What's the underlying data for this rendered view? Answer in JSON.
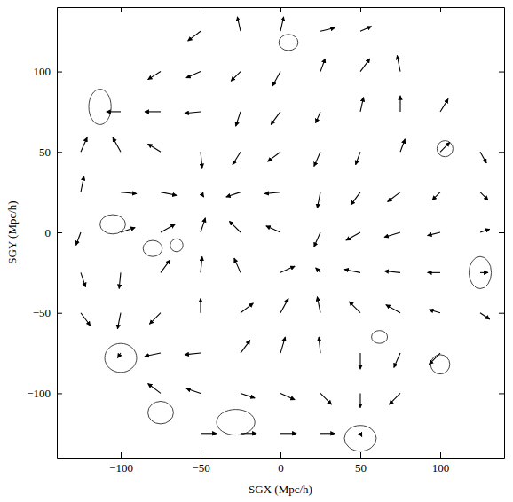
{
  "chart_data": {
    "type": "vector_field",
    "xlabel": "SGX (Mpc/h)",
    "ylabel": "SGY (Mpc/h)",
    "xlim": [
      -140,
      140
    ],
    "ylim": [
      -140,
      140
    ],
    "xticks": [
      {
        "value": -100,
        "label": "−100"
      },
      {
        "value": -50,
        "label": "−50"
      },
      0,
      50,
      100
    ],
    "yticks": [
      {
        "value": -100,
        "label": "−100"
      },
      {
        "value": -50,
        "label": "−50"
      },
      0,
      50,
      100
    ],
    "color": "#000000",
    "vectors": [
      {
        "x": -50,
        "y": 125,
        "dx": -8,
        "dy": -6
      },
      {
        "x": -25,
        "y": 125,
        "dx": -2,
        "dy": 9
      },
      {
        "x": 0,
        "y": 125,
        "dx": 2,
        "dy": 9
      },
      {
        "x": 25,
        "y": 125,
        "dx": 9,
        "dy": 2
      },
      {
        "x": 50,
        "y": 125,
        "dx": 7,
        "dy": 3
      },
      {
        "x": -75,
        "y": 100,
        "dx": -8,
        "dy": -5
      },
      {
        "x": -50,
        "y": 100,
        "dx": -9,
        "dy": -4
      },
      {
        "x": -25,
        "y": 100,
        "dx": -6,
        "dy": -6
      },
      {
        "x": 0,
        "y": 100,
        "dx": -5,
        "dy": -9
      },
      {
        "x": 25,
        "y": 100,
        "dx": 3,
        "dy": 8
      },
      {
        "x": 50,
        "y": 100,
        "dx": 6,
        "dy": 8
      },
      {
        "x": 75,
        "y": 100,
        "dx": -2,
        "dy": 10
      },
      {
        "x": -100,
        "y": 75,
        "dx": -9,
        "dy": 0
      },
      {
        "x": -75,
        "y": 75,
        "dx": -10,
        "dy": 0
      },
      {
        "x": -50,
        "y": 75,
        "dx": -10,
        "dy": -1
      },
      {
        "x": -25,
        "y": 75,
        "dx": -3,
        "dy": -9
      },
      {
        "x": 0,
        "y": 75,
        "dx": -6,
        "dy": -8
      },
      {
        "x": 25,
        "y": 75,
        "dx": -3,
        "dy": -7
      },
      {
        "x": 50,
        "y": 75,
        "dx": 2,
        "dy": 9
      },
      {
        "x": 75,
        "y": 75,
        "dx": 0,
        "dy": 10
      },
      {
        "x": 100,
        "y": 75,
        "dx": 5,
        "dy": 8
      },
      {
        "x": -125,
        "y": 50,
        "dx": 4,
        "dy": 9
      },
      {
        "x": -100,
        "y": 50,
        "dx": -5,
        "dy": 9
      },
      {
        "x": -75,
        "y": 50,
        "dx": -8,
        "dy": 5
      },
      {
        "x": -50,
        "y": 50,
        "dx": 1,
        "dy": -10
      },
      {
        "x": -25,
        "y": 50,
        "dx": -5,
        "dy": -8
      },
      {
        "x": 0,
        "y": 50,
        "dx": -8,
        "dy": -6
      },
      {
        "x": 25,
        "y": 50,
        "dx": -4,
        "dy": -9
      },
      {
        "x": 50,
        "y": 50,
        "dx": -3,
        "dy": -8
      },
      {
        "x": 75,
        "y": 50,
        "dx": 3,
        "dy": 8
      },
      {
        "x": 100,
        "y": 50,
        "dx": 6,
        "dy": 6
      },
      {
        "x": 125,
        "y": 50,
        "dx": 4,
        "dy": -7
      },
      {
        "x": -125,
        "y": 25,
        "dx": 2,
        "dy": 10
      },
      {
        "x": -100,
        "y": 25,
        "dx": 10,
        "dy": -1
      },
      {
        "x": -75,
        "y": 25,
        "dx": 10,
        "dy": -2
      },
      {
        "x": -50,
        "y": 25,
        "dx": 2,
        "dy": -3
      },
      {
        "x": -25,
        "y": 25,
        "dx": -9,
        "dy": -3
      },
      {
        "x": 0,
        "y": 25,
        "dx": -10,
        "dy": -1
      },
      {
        "x": 25,
        "y": 25,
        "dx": -2,
        "dy": -10
      },
      {
        "x": 50,
        "y": 25,
        "dx": -6,
        "dy": -8
      },
      {
        "x": 75,
        "y": 25,
        "dx": -8,
        "dy": -6
      },
      {
        "x": 100,
        "y": 25,
        "dx": -5,
        "dy": -5
      },
      {
        "x": 125,
        "y": 25,
        "dx": 5,
        "dy": -5
      },
      {
        "x": -125,
        "y": 0,
        "dx": -3,
        "dy": -8
      },
      {
        "x": -100,
        "y": 0,
        "dx": 9,
        "dy": 3
      },
      {
        "x": -75,
        "y": 0,
        "dx": 9,
        "dy": 5
      },
      {
        "x": -50,
        "y": 0,
        "dx": 3,
        "dy": 9
      },
      {
        "x": -25,
        "y": 0,
        "dx": -7,
        "dy": 7
      },
      {
        "x": 0,
        "y": 0,
        "dx": -9,
        "dy": 4
      },
      {
        "x": 25,
        "y": 0,
        "dx": -4,
        "dy": -9
      },
      {
        "x": 50,
        "y": 0,
        "dx": -9,
        "dy": -5
      },
      {
        "x": 75,
        "y": 0,
        "dx": -10,
        "dy": -3
      },
      {
        "x": 100,
        "y": 0,
        "dx": -8,
        "dy": -2
      },
      {
        "x": 125,
        "y": 0,
        "dx": 6,
        "dy": 2
      },
      {
        "x": -125,
        "y": -25,
        "dx": 3,
        "dy": -9
      },
      {
        "x": -100,
        "y": -25,
        "dx": -1,
        "dy": -10
      },
      {
        "x": -75,
        "y": -25,
        "dx": 6,
        "dy": 8
      },
      {
        "x": -50,
        "y": -25,
        "dx": 1,
        "dy": 10
      },
      {
        "x": -25,
        "y": -25,
        "dx": -4,
        "dy": 9
      },
      {
        "x": 0,
        "y": -25,
        "dx": 9,
        "dy": 4
      },
      {
        "x": 25,
        "y": -25,
        "dx": -3,
        "dy": 3
      },
      {
        "x": 50,
        "y": -25,
        "dx": -10,
        "dy": 2
      },
      {
        "x": 75,
        "y": -25,
        "dx": -10,
        "dy": 1
      },
      {
        "x": 100,
        "y": -25,
        "dx": -8,
        "dy": 0
      },
      {
        "x": 125,
        "y": -25,
        "dx": 5,
        "dy": 0
      },
      {
        "x": -125,
        "y": -50,
        "dx": 6,
        "dy": -8
      },
      {
        "x": -100,
        "y": -50,
        "dx": -2,
        "dy": -10
      },
      {
        "x": -75,
        "y": -50,
        "dx": -7,
        "dy": -7
      },
      {
        "x": -50,
        "y": -50,
        "dx": 0,
        "dy": 9
      },
      {
        "x": -25,
        "y": -50,
        "dx": 8,
        "dy": 6
      },
      {
        "x": 0,
        "y": -50,
        "dx": 5,
        "dy": 9
      },
      {
        "x": 25,
        "y": -50,
        "dx": -2,
        "dy": 10
      },
      {
        "x": 50,
        "y": -50,
        "dx": -7,
        "dy": 7
      },
      {
        "x": 75,
        "y": -50,
        "dx": -9,
        "dy": 5
      },
      {
        "x": 100,
        "y": -50,
        "dx": -7,
        "dy": 2
      },
      {
        "x": 125,
        "y": -50,
        "dx": 6,
        "dy": -4
      },
      {
        "x": -100,
        "y": -75,
        "dx": -2,
        "dy": -3
      },
      {
        "x": -75,
        "y": -75,
        "dx": -10,
        "dy": -2
      },
      {
        "x": -50,
        "y": -75,
        "dx": -10,
        "dy": -1
      },
      {
        "x": -25,
        "y": -75,
        "dx": 6,
        "dy": 8
      },
      {
        "x": 0,
        "y": -75,
        "dx": 3,
        "dy": 10
      },
      {
        "x": 25,
        "y": -75,
        "dx": -1,
        "dy": 10
      },
      {
        "x": 50,
        "y": -75,
        "dx": 0,
        "dy": -10
      },
      {
        "x": 75,
        "y": -75,
        "dx": -4,
        "dy": -9
      },
      {
        "x": 100,
        "y": -75,
        "dx": -7,
        "dy": -7
      },
      {
        "x": -75,
        "y": -100,
        "dx": -8,
        "dy": 6
      },
      {
        "x": -50,
        "y": -100,
        "dx": -9,
        "dy": 3
      },
      {
        "x": -25,
        "y": -100,
        "dx": 9,
        "dy": -3
      },
      {
        "x": 0,
        "y": -100,
        "dx": 9,
        "dy": -4
      },
      {
        "x": 25,
        "y": -100,
        "dx": 7,
        "dy": -7
      },
      {
        "x": 50,
        "y": -100,
        "dx": 0,
        "dy": -9
      },
      {
        "x": 75,
        "y": -100,
        "dx": -7,
        "dy": -7
      },
      {
        "x": -50,
        "y": -125,
        "dx": 10,
        "dy": 0
      },
      {
        "x": -25,
        "y": -125,
        "dx": 10,
        "dy": 0
      },
      {
        "x": 0,
        "y": -125,
        "dx": 10,
        "dy": 0
      },
      {
        "x": 25,
        "y": -125,
        "dx": 9,
        "dy": 0
      },
      {
        "x": 50,
        "y": -125,
        "dx": 1,
        "dy": -2
      }
    ],
    "contours": [
      {
        "x": -113,
        "y": 78,
        "rx": 7,
        "ry": 11
      },
      {
        "x": -105,
        "y": 5,
        "rx": 8,
        "ry": 6
      },
      {
        "x": -100,
        "y": -78,
        "rx": 10,
        "ry": 9
      },
      {
        "x": -28,
        "y": -118,
        "rx": 12,
        "ry": 8
      },
      {
        "x": 50,
        "y": -128,
        "rx": 10,
        "ry": 8
      },
      {
        "x": 125,
        "y": -25,
        "rx": 7,
        "ry": 10
      },
      {
        "x": 103,
        "y": 52,
        "rx": 5,
        "ry": 5
      },
      {
        "x": 62,
        "y": -65,
        "rx": 5,
        "ry": 4
      },
      {
        "x": 100,
        "y": -82,
        "rx": 6,
        "ry": 6
      },
      {
        "x": -80,
        "y": -10,
        "rx": 6,
        "ry": 5
      },
      {
        "x": -75,
        "y": -112,
        "rx": 8,
        "ry": 7
      },
      {
        "x": 5,
        "y": 118,
        "rx": 6,
        "ry": 5
      },
      {
        "x": -65,
        "y": -8,
        "rx": 4,
        "ry": 4
      }
    ]
  }
}
